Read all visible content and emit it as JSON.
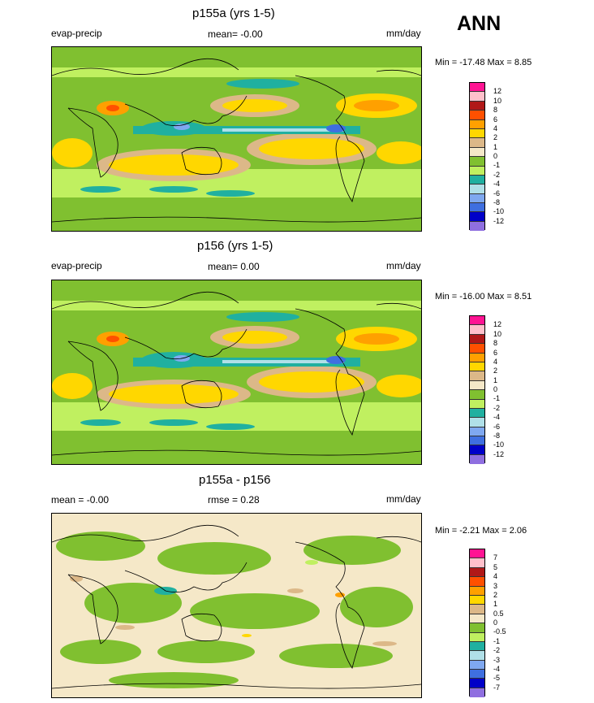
{
  "season": "ANN",
  "colors": {
    "seq": [
      "#8f6fe0",
      "#0000c8",
      "#3f6fe0",
      "#7fa8f0",
      "#b0e0e8",
      "#20b0a0",
      "#80c030",
      "#c0f060",
      "#f5e8c8",
      "#dcb888",
      "#ffd700",
      "#ffa000",
      "#ff5000",
      "#b01818",
      "#ffc0cb",
      "#ff1493"
    ]
  },
  "panels": [
    {
      "title": "p155a (yrs 1-5)",
      "left_label": "evap-precip",
      "mid_label": "mean=  -0.00",
      "units": "mm/day",
      "minmax": "Min = -17.48 Max =   8.85",
      "levels": [
        "12",
        "10",
        "8",
        "6",
        "4",
        "2",
        "1",
        "0",
        "-1",
        "-2",
        "-4",
        "-6",
        "-8",
        "-10",
        "-12"
      ]
    },
    {
      "title": "p156 (yrs 1-5)",
      "left_label": "evap-precip",
      "mid_label": "mean=  0.00",
      "units": "mm/day",
      "minmax": "Min = -16.00 Max =   8.51",
      "levels": [
        "12",
        "10",
        "8",
        "6",
        "4",
        "2",
        "1",
        "0",
        "-1",
        "-2",
        "-4",
        "-6",
        "-8",
        "-10",
        "-12"
      ]
    },
    {
      "title": "p155a - p156",
      "left_label": "mean =  -0.00",
      "mid_label": "rmse =  0.28",
      "units": "mm/day",
      "minmax": "Min =  -2.21 Max =   2.06",
      "levels": [
        "7",
        "5",
        "4",
        "3",
        "2",
        "1",
        "0.5",
        "0",
        "-0.5",
        "-1",
        "-2",
        "-3",
        "-4",
        "-5",
        "-7"
      ]
    }
  ]
}
